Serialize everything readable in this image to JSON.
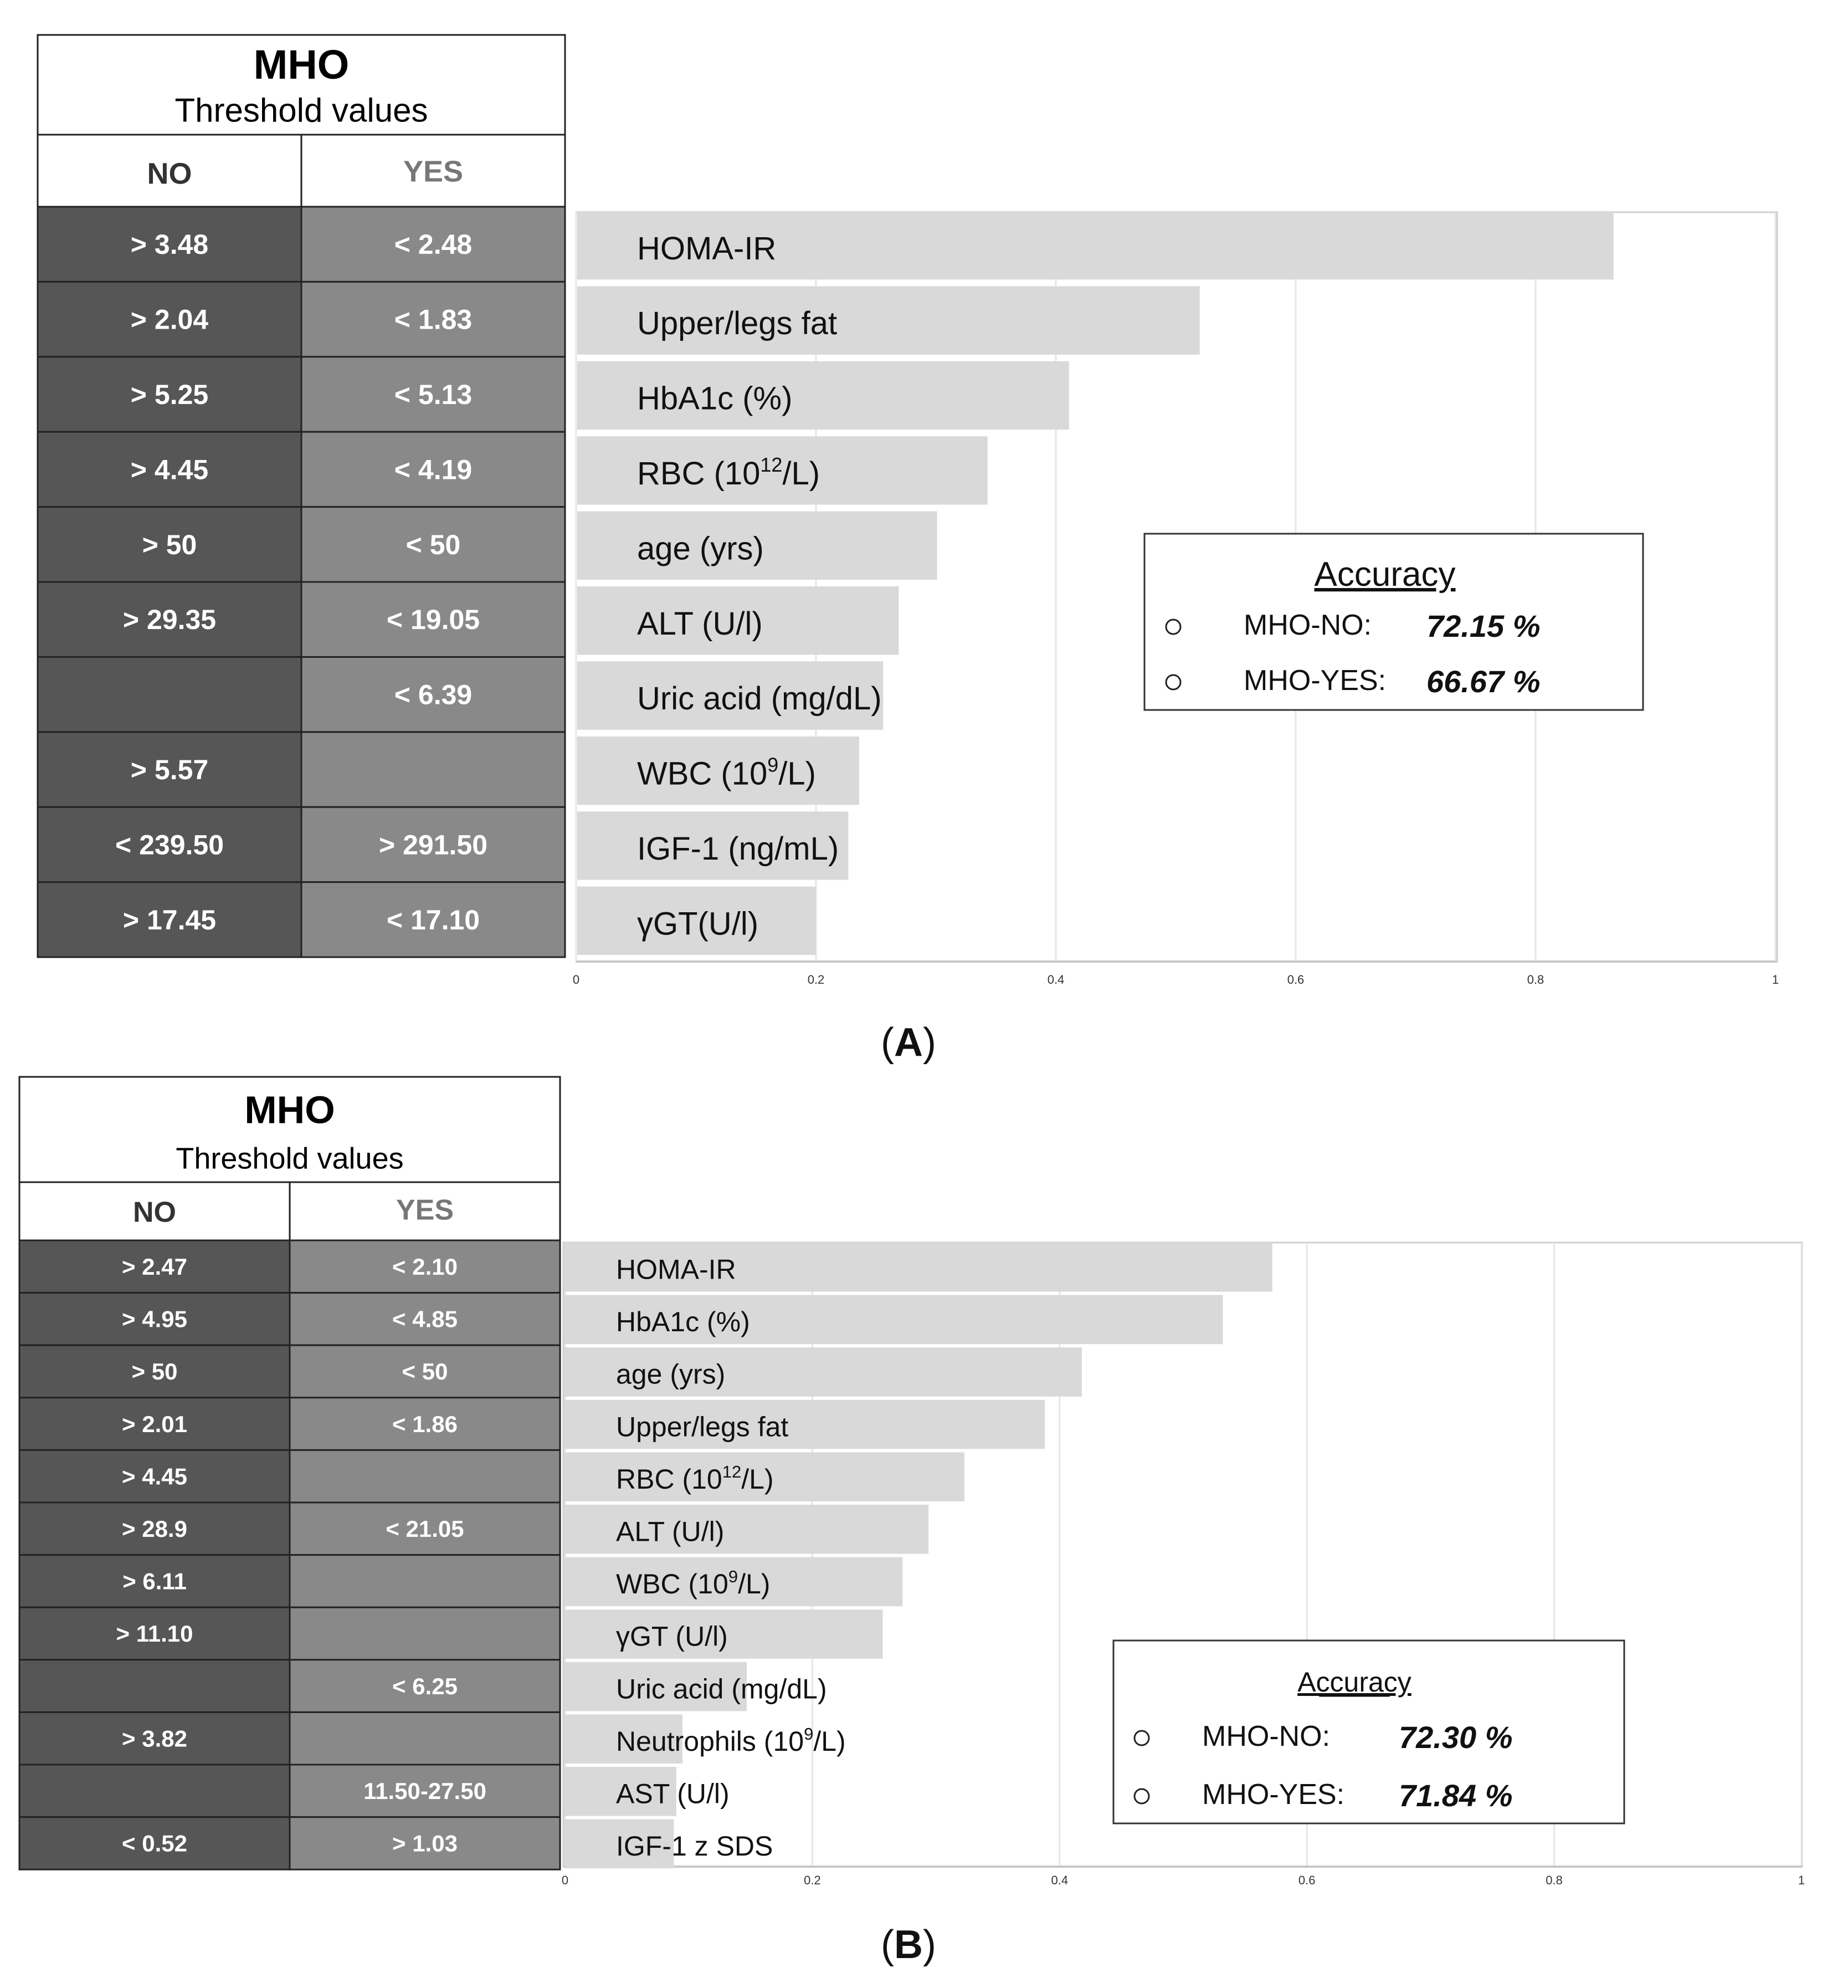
{
  "colors": {
    "no_cell": "#565656",
    "yes_cell": "#898989",
    "bar": "#d9d9d9",
    "grid": "#e6e6e6",
    "background": "#ffffff"
  },
  "chart_data": [
    {
      "type": "bar",
      "orientation": "horizontal",
      "panel_label": "A",
      "table": {
        "title": "MHO",
        "subtitle": "Threshold values",
        "no_header": "NO",
        "yes_header": "YES"
      },
      "categories": [
        "HOMA-IR",
        "Upper/legs fat",
        "HbA1c (%)",
        "RBC (10",
        "age (yrs)",
        "ALT (U/l)",
        "Uric acid (mg/dL)",
        "WBC (10",
        "IGF-1 (ng/mL)",
        "γGT(U/l)"
      ],
      "rows": [
        {
          "label": "HOMA-IR",
          "no": "> 3.48",
          "yes": "< 2.48",
          "value": 0.865
        },
        {
          "label": "Upper/legs fat",
          "no": "> 2.04",
          "yes": "< 1.83",
          "value": 0.52
        },
        {
          "label": "HbA1c (%)",
          "no": "> 5.25",
          "yes": "< 5.13",
          "value": 0.411
        },
        {
          "label": "RBC (10",
          "sup": "12",
          "label_suffix": "/L)",
          "no": "> 4.45",
          "yes": "< 4.19",
          "value": 0.343
        },
        {
          "label": "age (yrs)",
          "no": "> 50",
          "yes": "< 50",
          "value": 0.301
        },
        {
          "label": "ALT (U/l)",
          "no": "> 29.35",
          "yes": "< 19.05",
          "value": 0.269
        },
        {
          "label": "Uric acid (mg/dL)",
          "no": "",
          "yes": "< 6.39",
          "value": 0.256
        },
        {
          "label": "WBC (10",
          "sup": "9",
          "label_suffix": "/L)",
          "no": "> 5.57",
          "yes": "",
          "value": 0.236
        },
        {
          "label": "IGF-1 (ng/mL)",
          "no": "< 239.50",
          "yes": "> 291.50",
          "value": 0.227
        },
        {
          "label": "γGT(U/l)",
          "no": "> 17.45",
          "yes": "< 17.10",
          "value": 0.2
        }
      ],
      "xlim": [
        0,
        1
      ],
      "xticks": [
        0,
        0.2,
        0.4,
        0.6,
        0.8,
        1
      ],
      "xtick_labels": [
        "0",
        "0.2",
        "0.4",
        "0.6",
        "0.8",
        "1"
      ],
      "legend": {
        "title": "Accuracy",
        "items": [
          {
            "label": "MHO-NO:",
            "value": "72.15 %"
          },
          {
            "label": "MHO-YES:",
            "value": "66.67 %"
          }
        ]
      }
    },
    {
      "type": "bar",
      "orientation": "horizontal",
      "panel_label": "B",
      "table": {
        "title": "MHO",
        "subtitle": "Threshold values",
        "no_header": "NO",
        "yes_header": "YES"
      },
      "categories": [
        "HOMA-IR",
        "HbA1c (%)",
        "age (yrs)",
        "Upper/legs fat",
        "RBC (10",
        "ALT (U/l)",
        "WBC (10",
        "γGT (U/l)",
        "Uric acid (mg/dL)",
        "Neutrophils (10",
        "AST (U/l)",
        "IGF-1 z SDS"
      ],
      "rows": [
        {
          "label": "HOMA-IR",
          "no": "> 2.47",
          "yes": "< 2.10",
          "value": 0.572
        },
        {
          "label": "HbA1c (%)",
          "no": "> 4.95",
          "yes": "< 4.85",
          "value": 0.532
        },
        {
          "label": "age (yrs)",
          "no": "> 50",
          "yes": "< 50",
          "value": 0.418
        },
        {
          "label": "Upper/legs fat",
          "no": "> 2.01",
          "yes": "< 1.86",
          "value": 0.388
        },
        {
          "label": "RBC (10",
          "sup": "12",
          "label_suffix": "/L)",
          "no": "> 4.45",
          "yes": "",
          "value": 0.323
        },
        {
          "label": "ALT (U/l)",
          "no": "> 28.9",
          "yes": "< 21.05",
          "value": 0.294
        },
        {
          "label": "WBC (10",
          "sup": "9",
          "label_suffix": "/L)",
          "no": "> 6.11",
          "yes": "",
          "value": 0.273
        },
        {
          "label": "γGT (U/l)",
          "no": "> 11.10",
          "yes": "",
          "value": 0.257
        },
        {
          "label": "Uric acid (mg/dL)",
          "no": "",
          "yes": "< 6.25",
          "value": 0.147
        },
        {
          "label": "Neutrophils (10",
          "sup": "9",
          "label_suffix": "/L)",
          "no": "> 3.82",
          "yes": "",
          "value": 0.095
        },
        {
          "label": "AST (U/l)",
          "no": "",
          "yes": "11.50-27.50",
          "value": 0.09
        },
        {
          "label": "IGF-1 z SDS",
          "no": "< 0.52",
          "yes": "> 1.03",
          "value": 0.088
        }
      ],
      "xlim": [
        0,
        1
      ],
      "xticks": [
        0,
        0.2,
        0.4,
        0.6,
        0.8,
        1
      ],
      "xtick_labels": [
        "0",
        "0.2",
        "0.4",
        "0.6",
        "0.8",
        "1"
      ],
      "legend": {
        "title": "Accuracy",
        "items": [
          {
            "label": "MHO-NO:",
            "value": "72.30 %"
          },
          {
            "label": "MHO-YES:",
            "value": "71.84 %"
          }
        ]
      }
    }
  ]
}
